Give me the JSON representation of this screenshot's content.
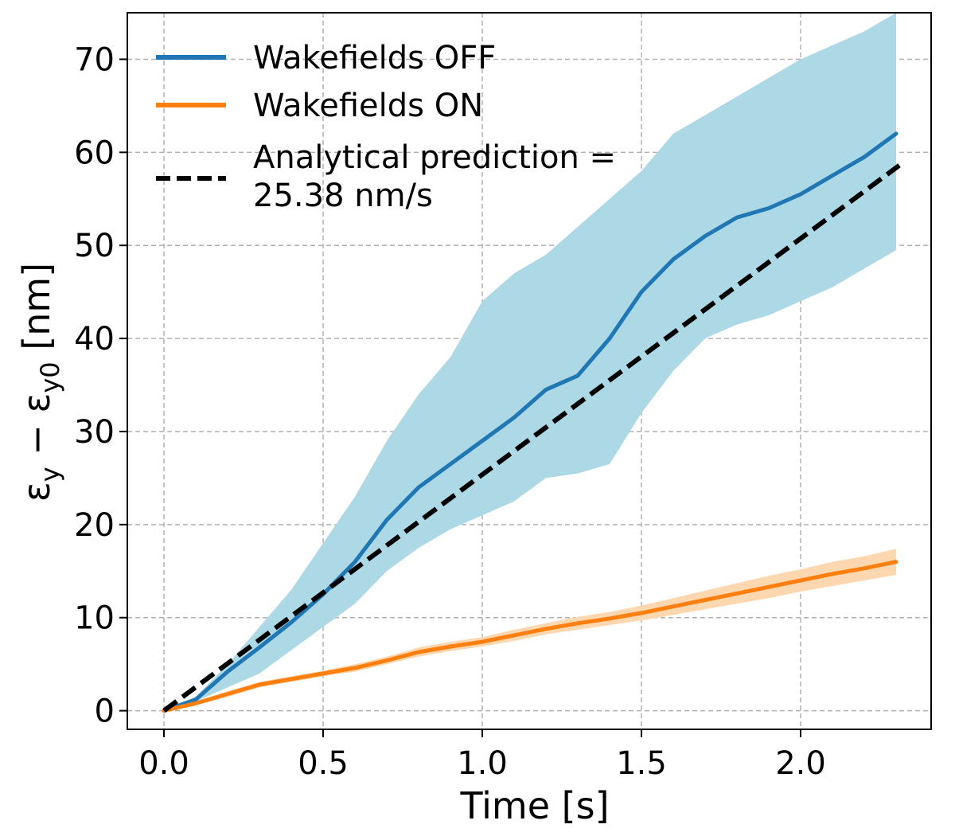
{
  "chart_data": {
    "type": "line",
    "xlabel": "Time [s]",
    "ylabel": "ε",
    "ylabel_sub_y": "y",
    "ylabel_minus": " − ε",
    "ylabel_sub_y0": "y0",
    "ylabel_unit": " [nm]",
    "xlim": [
      -0.115,
      2.41
    ],
    "ylim": [
      -2,
      75
    ],
    "xticks": [
      0.0,
      0.5,
      1.0,
      1.5,
      2.0
    ],
    "xtick_labels": [
      "0.0",
      "0.5",
      "1.0",
      "1.5",
      "2.0"
    ],
    "yticks": [
      0,
      10,
      20,
      30,
      40,
      50,
      60,
      70
    ],
    "ytick_labels": [
      "0",
      "10",
      "20",
      "30",
      "40",
      "50",
      "60",
      "70"
    ],
    "grid": true,
    "legend_position": "top-left",
    "series": [
      {
        "name": "Wakefields OFF",
        "color": "#1f77b4",
        "band_color": "#add8e6",
        "x": [
          0,
          0.1,
          0.2,
          0.3,
          0.4,
          0.5,
          0.6,
          0.7,
          0.8,
          0.9,
          1.0,
          1.1,
          1.2,
          1.3,
          1.4,
          1.5,
          1.6,
          1.7,
          1.8,
          1.9,
          2.0,
          2.1,
          2.2,
          2.3
        ],
        "y": [
          0,
          1.2,
          4.2,
          6.8,
          9.5,
          12.5,
          16,
          20.5,
          24,
          26.5,
          29,
          31.5,
          34.5,
          36,
          40,
          45,
          48.5,
          51,
          53,
          54,
          55.5,
          57.5,
          59.5,
          62
        ],
        "band_lower": [
          0,
          1,
          2.5,
          4,
          6.5,
          9,
          11.5,
          15,
          17.5,
          19.5,
          21,
          22.5,
          25,
          25.5,
          26.5,
          32,
          36.5,
          40,
          41.5,
          42.5,
          44,
          45.5,
          47.5,
          49.5
        ],
        "band_upper": [
          0,
          1.5,
          5,
          9,
          13,
          18,
          23,
          29,
          34,
          38,
          44,
          47,
          49,
          52,
          55,
          58,
          62,
          64,
          66,
          68,
          70,
          71.5,
          73,
          75
        ]
      },
      {
        "name": "Wakefields ON",
        "color": "#ff7f0e",
        "band_color": "#fdd7b0",
        "x": [
          0,
          0.1,
          0.2,
          0.3,
          0.4,
          0.5,
          0.6,
          0.7,
          0.8,
          0.9,
          1.0,
          1.1,
          1.2,
          1.3,
          1.4,
          1.5,
          1.6,
          1.7,
          1.8,
          1.9,
          2.0,
          2.1,
          2.2,
          2.3
        ],
        "y": [
          0,
          0.8,
          1.8,
          2.8,
          3.4,
          4.0,
          4.6,
          5.4,
          6.3,
          6.9,
          7.4,
          8.1,
          8.8,
          9.4,
          9.9,
          10.5,
          11.2,
          11.9,
          12.6,
          13.3,
          14.0,
          14.7,
          15.3,
          16.0
        ],
        "band_lower": [
          0,
          0.6,
          1.5,
          2.5,
          3.1,
          3.7,
          4.2,
          5.0,
          5.8,
          6.4,
          6.9,
          7.5,
          8.2,
          8.7,
          9.2,
          9.7,
          10.3,
          10.9,
          11.5,
          12.1,
          12.8,
          13.4,
          14.0,
          14.6
        ],
        "band_upper": [
          0,
          1.0,
          2.1,
          3.1,
          3.7,
          4.3,
          5.0,
          5.8,
          6.8,
          7.4,
          7.9,
          8.7,
          9.4,
          10.1,
          10.6,
          11.3,
          12.1,
          12.9,
          13.7,
          14.5,
          15.2,
          16.0,
          16.6,
          17.4
        ]
      },
      {
        "name": "Analytical prediction = 25.38 nm/s",
        "color": "#000000",
        "dashed": true,
        "slope": 25.38,
        "x": [
          0,
          2.31
        ],
        "y": [
          0,
          58.6
        ]
      }
    ],
    "legend_labels": [
      "Wakefields OFF",
      "Wakefields ON",
      "Analytical prediction =",
      "25.38 nm/s"
    ]
  }
}
